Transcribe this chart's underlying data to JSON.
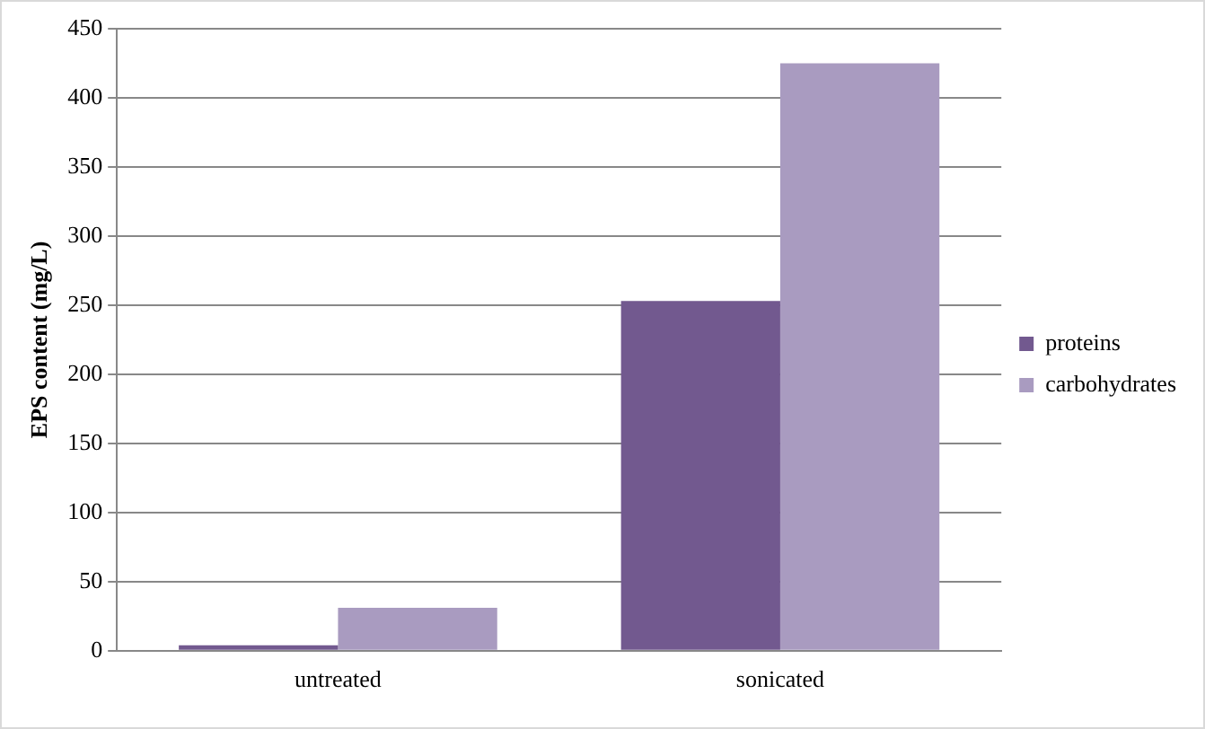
{
  "chart_data": {
    "type": "bar",
    "ylabel": "EPS content (mg/L)",
    "categories": [
      "untreated",
      "sonicated"
    ],
    "series": [
      {
        "name": "proteins",
        "color": "#72598f",
        "values": [
          4,
          253
        ]
      },
      {
        "name": "carbohydrates",
        "color": "#a99bc0",
        "values": [
          31,
          425
        ]
      }
    ],
    "ylim": [
      0,
      450
    ],
    "yticks": [
      0,
      50,
      100,
      150,
      200,
      250,
      300,
      350,
      400,
      450
    ],
    "grid": "y",
    "legend": "right"
  }
}
